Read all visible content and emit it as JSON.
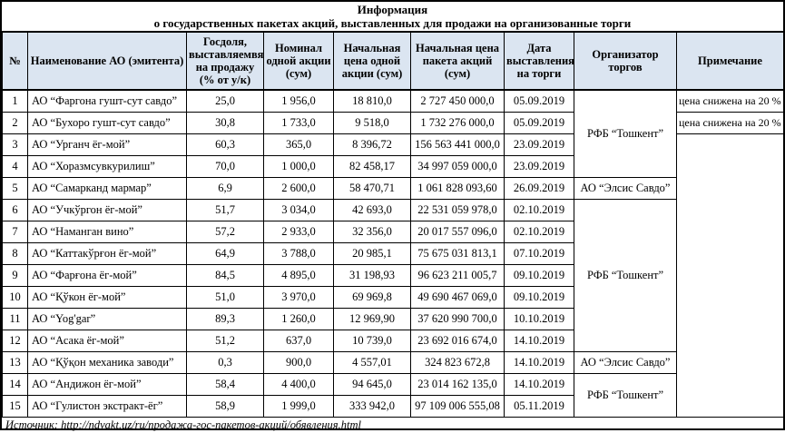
{
  "title": {
    "line1": "Информация",
    "line2": "о государственных пакетах акций, выставленных для продажи на организованные торги"
  },
  "source": "Источник: http://ndvakt.uz/ru/продажа-гос-пакетов-акций/обявления.html",
  "colors": {
    "header_bg": "#dbe5f1",
    "border": "#000000",
    "page_bg": "#ffffff"
  },
  "table": {
    "columns": [
      "№",
      "Наименование АО (эмитента)",
      "Госдоля, выставляемвя на продажу (% от у/к)",
      "Номинал одной акции (сум)",
      "Начальная цена одной акции  (сум)",
      "Начальная цена пакета акций (сум)",
      "Дата выставления на торги",
      "Организатор торгов",
      "Примечание"
    ],
    "rows": [
      {
        "num": "1",
        "name": "АО “Фаргона гушт-сут савдо”",
        "share": "25,0",
        "nominal": "1 956,0",
        "price_share": "18 810,0",
        "price_pack": "2 727 450 000,0",
        "date": "05.09.2019",
        "organizer": {
          "label": "РФБ “Тошкент”",
          "rowspan": 4
        },
        "note": {
          "label": "цена снижена на 20 %",
          "rowspan": 1
        }
      },
      {
        "num": "2",
        "name": "АО “Бухоро гушт-сут савдо”",
        "share": "30,8",
        "nominal": "1 733,0",
        "price_share": "9 518,0",
        "price_pack": "1 732 276 000,0",
        "date": "05.09.2019",
        "note": {
          "label": "цена снижена на 20 %",
          "rowspan": 1
        }
      },
      {
        "num": "3",
        "name": "АО “Урганч ёг-мой”",
        "share": "60,3",
        "nominal": "365,0",
        "price_share": "8 396,72",
        "price_pack": "156 563 441 000,0",
        "date": "23.09.2019",
        "note": {
          "label": "",
          "rowspan": 13
        }
      },
      {
        "num": "4",
        "name": "АО “Хоразмсувкурилиш”",
        "share": "70,0",
        "nominal": "1 000,0",
        "price_share": "82 458,17",
        "price_pack": "34 997 059 000,0",
        "date": "23.09.2019"
      },
      {
        "num": "5",
        "name": "АО “Самарканд мармар”",
        "share": "6,9",
        "nominal": "2 600,0",
        "price_share": "58 470,71",
        "price_pack": "1 061 828 093,60",
        "date": "26.09.2019",
        "organizer": {
          "label": "АО “Элсис Савдо”",
          "rowspan": 1
        }
      },
      {
        "num": "6",
        "name": "АО “Учкўргон ёг-мой”",
        "share": "51,7",
        "nominal": "3 034,0",
        "price_share": "42 693,0",
        "price_pack": "22 531 059 978,0",
        "date": "02.10.2019",
        "organizer": {
          "label": "РФБ “Тошкент”",
          "rowspan": 7
        }
      },
      {
        "num": "7",
        "name": "АО “Наманган вино”",
        "share": "57,2",
        "nominal": "2 933,0",
        "price_share": "32 356,0",
        "price_pack": "20 017 557 096,0",
        "date": "02.10.2019"
      },
      {
        "num": "8",
        "name": "АО “Каттакўрғон ёг-мой”",
        "share": "64,9",
        "nominal": "3 788,0",
        "price_share": "20 985,1",
        "price_pack": "75 675 031 813,1",
        "date": "07.10.2019"
      },
      {
        "num": "9",
        "name": "АО “Фарғона ёг-мой”",
        "share": "84,5",
        "nominal": "4 895,0",
        "price_share": "31 198,93",
        "price_pack": "96 623 211 005,7",
        "date": "09.10.2019"
      },
      {
        "num": "10",
        "name": "АО “Қўкон ёг-мой”",
        "share": "51,0",
        "nominal": "3 970,0",
        "price_share": "69 969,8",
        "price_pack": "49 690 467 069,0",
        "date": "09.10.2019"
      },
      {
        "num": "11",
        "name": "АО “Yog'gar”",
        "share": "89,3",
        "nominal": "1 260,0",
        "price_share": "12 969,90",
        "price_pack": "37 620 990 700,0",
        "date": "10.10.2019"
      },
      {
        "num": "12",
        "name": "АО “Асака ёг-мой”",
        "share": "51,2",
        "nominal": "637,0",
        "price_share": "10 739,0",
        "price_pack": "23 692 016 674,0",
        "date": "14.10.2019"
      },
      {
        "num": "13",
        "name": "АО “Қўқон механика заводи”",
        "share": "0,3",
        "nominal": "900,0",
        "price_share": "4 557,01",
        "price_pack": "324 823 672,8",
        "date": "14.10.2019",
        "organizer": {
          "label": "АО “Элсис Савдо”",
          "rowspan": 1
        }
      },
      {
        "num": "14",
        "name": "АО “Андижон ёг-мой”",
        "share": "58,4",
        "nominal": "4 400,0",
        "price_share": "94 645,0",
        "price_pack": "23 014 162 135,0",
        "date": "14.10.2019",
        "organizer": {
          "label": "РФБ “Тошкент”",
          "rowspan": 2
        }
      },
      {
        "num": "15",
        "name": "АО “Гулистон экстракт-ёг”",
        "share": "58,9",
        "nominal": "1 999,0",
        "price_share": "333 942,0",
        "price_pack": "97 109 006 555,08",
        "date": "05.11.2019"
      }
    ]
  }
}
